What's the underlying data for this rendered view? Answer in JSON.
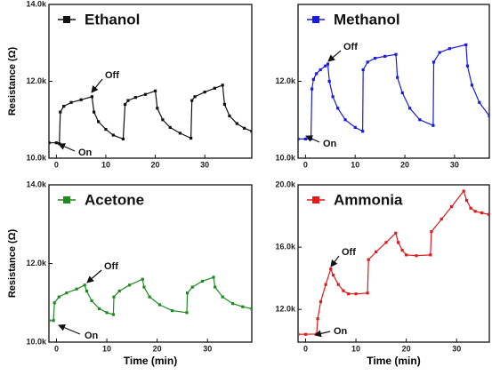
{
  "chart_data": [
    {
      "type": "line",
      "xlim": [
        -1.5,
        39.5
      ],
      "xticks": [
        0,
        10,
        20,
        30
      ],
      "ylim": [
        10000,
        14000
      ],
      "yticks": [
        {
          "value": 10000,
          "label": "10.0k"
        },
        {
          "value": 12000,
          "label": "12.0k"
        },
        {
          "value": 14000,
          "label": "14.0k"
        }
      ],
      "ylabel": "Resistance (Ω)",
      "annotations": [
        "Off",
        "On"
      ],
      "series": [
        {
          "name": "Ethanol",
          "color": "#111111",
          "x": [
            -1.5,
            0,
            0.6,
            0.8,
            1.5,
            3,
            5,
            7.2,
            7.6,
            8.5,
            10,
            11.5,
            13.5,
            13.9,
            14.5,
            16,
            18,
            20,
            20.4,
            21.5,
            23,
            25,
            27.2,
            27.4,
            28,
            30,
            32,
            33.6,
            34,
            35,
            36.5,
            38,
            39.5
          ],
          "values": [
            10400,
            10400,
            10380,
            11200,
            11350,
            11450,
            11520,
            11600,
            11200,
            10950,
            10750,
            10600,
            10500,
            11400,
            11500,
            11580,
            11660,
            11750,
            11300,
            11000,
            10800,
            10650,
            10520,
            11500,
            11600,
            11720,
            11820,
            11900,
            11400,
            11100,
            10900,
            10780,
            10700
          ]
        }
      ]
    },
    {
      "type": "line",
      "xlim": [
        -1.5,
        37
      ],
      "xticks": [
        0,
        10,
        20,
        30
      ],
      "ylim": [
        10000,
        14000
      ],
      "yticks": [
        {
          "value": 10000,
          "label": "10.0k"
        },
        {
          "value": 12000,
          "label": "12.0k"
        }
      ],
      "annotations": [
        "Off",
        "On"
      ],
      "series": [
        {
          "name": "Methanol",
          "color": "#1a1ae0",
          "x": [
            -1.5,
            0,
            1.1,
            1.3,
            1.6,
            2.2,
            3,
            4,
            4.5,
            4.8,
            5.5,
            6.5,
            8,
            10,
            11.5,
            11.6,
            12.5,
            14,
            16,
            18.2,
            18.5,
            19.5,
            21,
            23,
            25.7,
            25.8,
            27,
            29,
            32.3,
            32.6,
            33.5,
            35,
            37
          ],
          "values": [
            10500,
            10500,
            10500,
            11800,
            12050,
            12200,
            12300,
            12400,
            12450,
            12000,
            11600,
            11300,
            11000,
            10800,
            10700,
            12300,
            12500,
            12600,
            12650,
            12700,
            12100,
            11700,
            11300,
            11000,
            10850,
            12500,
            12750,
            12850,
            12950,
            12400,
            11900,
            11450,
            11100
          ]
        }
      ]
    },
    {
      "type": "line",
      "xlim": [
        -1.5,
        38.8
      ],
      "xticks": [
        0,
        10,
        20,
        30
      ],
      "ylim": [
        10000,
        14000
      ],
      "yticks": [
        {
          "value": 10000,
          "label": "10.0k"
        },
        {
          "value": 12000,
          "label": "12.0k"
        },
        {
          "value": 14000,
          "label": "14.0k"
        }
      ],
      "ylabel": "Resistance (Ω)",
      "xlabel": "Time (min)",
      "annotations": [
        "Off",
        "On"
      ],
      "series": [
        {
          "name": "Acetone",
          "color": "#1f8a24",
          "x": [
            -1.5,
            -0.6,
            -0.4,
            0.5,
            2,
            4,
            5.6,
            6,
            7,
            8.5,
            10,
            11.3,
            11.4,
            12.5,
            14.5,
            17.1,
            17.4,
            18.5,
            20.5,
            23,
            25.9,
            26,
            27,
            29,
            31.2,
            31.5,
            33,
            35,
            37,
            38.8
          ],
          "values": [
            10550,
            10550,
            11000,
            11150,
            11250,
            11350,
            11450,
            11300,
            11050,
            10850,
            10750,
            10700,
            11150,
            11300,
            11450,
            11600,
            11400,
            11150,
            10950,
            10800,
            10750,
            11250,
            11400,
            11550,
            11650,
            11400,
            11150,
            10980,
            10900,
            10850
          ]
        }
      ]
    },
    {
      "type": "line",
      "xlim": [
        -1.5,
        36.5
      ],
      "xticks": [
        0,
        10,
        20,
        30
      ],
      "ylim": [
        9900,
        20000
      ],
      "yticks": [
        {
          "value": 12000,
          "label": "12.0k"
        },
        {
          "value": 16000,
          "label": "16.0k"
        },
        {
          "value": 20000,
          "label": "20.0k"
        }
      ],
      "xlabel": "Time (min)",
      "annotations": [
        "Off",
        "On"
      ],
      "series": [
        {
          "name": "Ammonia",
          "color": "#e3191c",
          "x": [
            -1.5,
            0,
            2.2,
            2.4,
            3,
            4,
            5,
            5.5,
            6.5,
            7.5,
            8.5,
            10,
            12.3,
            12.5,
            14,
            16,
            17.9,
            18.4,
            19.2,
            20,
            22,
            24.8,
            25,
            27,
            29,
            31.4,
            32,
            32.8,
            33.7,
            35,
            36.4
          ],
          "values": [
            10400,
            10400,
            10420,
            11400,
            12500,
            13600,
            14600,
            14200,
            13600,
            13200,
            13000,
            13000,
            13050,
            15200,
            15700,
            16300,
            16900,
            16300,
            15800,
            15500,
            15450,
            15500,
            17000,
            17800,
            18600,
            19600,
            19000,
            18500,
            18300,
            18200,
            18100
          ]
        }
      ]
    }
  ]
}
